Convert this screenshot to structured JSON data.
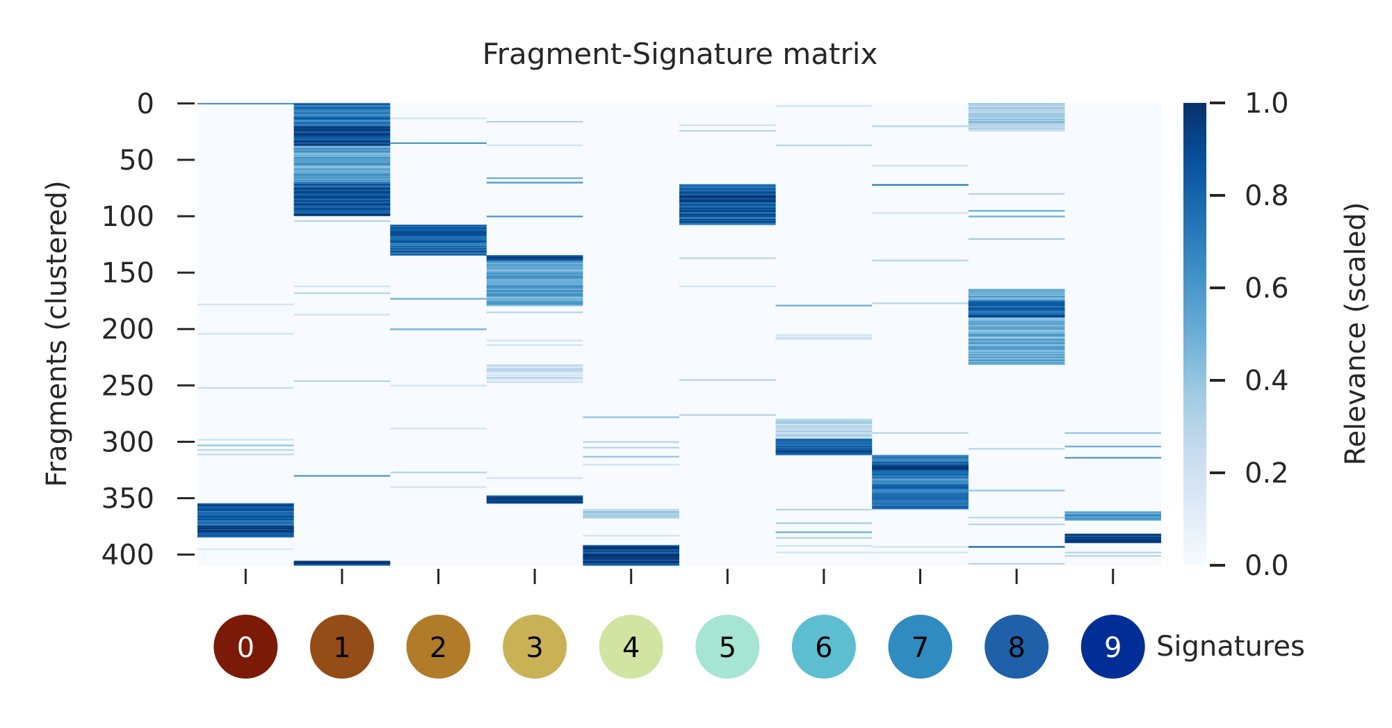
{
  "chart_data": {
    "type": "heatmap",
    "title": "Fragment-Signature matrix",
    "ylabel": "Fragments (clustered)",
    "colorbar_label": "Relevance (scaled)",
    "colormap": "Blues",
    "value_range": [
      0.0,
      1.0
    ],
    "n_rows": 410,
    "y_ticks": [
      0,
      50,
      100,
      150,
      200,
      250,
      300,
      350,
      400
    ],
    "colorbar_ticks": [
      "0.0",
      "0.2",
      "0.4",
      "0.6",
      "0.8",
      "1.0"
    ],
    "signatures": {
      "label": "Signatures",
      "ids": [
        "0",
        "1",
        "2",
        "3",
        "4",
        "5",
        "6",
        "7",
        "8",
        "9"
      ],
      "colors": [
        "#7b1a06",
        "#944d16",
        "#b07c2a",
        "#c9b256",
        "#d1e4a2",
        "#a6e4d4",
        "#5dbed1",
        "#2f8bc0",
        "#1f60a8",
        "#002e96"
      ],
      "text_colors": [
        "#ffffff",
        "#000000",
        "#000000",
        "#000000",
        "#000000",
        "#000000",
        "#000000",
        "#000000",
        "#000000",
        "#ffffff"
      ]
    },
    "columns": [
      {
        "signature": "0",
        "blocks": [
          {
            "rows": [
              0,
              1
            ],
            "value": 0.7
          },
          {
            "rows": [
              355,
              385
            ],
            "value": 0.8
          },
          {
            "rows": [
              375,
              380
            ],
            "value": 0.95
          }
        ],
        "lines": [
          [
            178,
            0.2
          ],
          [
            204,
            0.2
          ],
          [
            252,
            0.25
          ],
          [
            298,
            0.2
          ],
          [
            303,
            0.4
          ],
          [
            307,
            0.3
          ],
          [
            311,
            0.25
          ],
          [
            395,
            0.15
          ]
        ]
      },
      {
        "signature": "1",
        "blocks": [
          {
            "rows": [
              0,
              20
            ],
            "value": 0.75
          },
          {
            "rows": [
              20,
              38
            ],
            "value": 0.9
          },
          {
            "rows": [
              38,
              70
            ],
            "value": 0.55
          },
          {
            "rows": [
              70,
              100
            ],
            "value": 0.85
          },
          {
            "rows": [
              406,
              410
            ],
            "value": 0.9
          }
        ],
        "lines": [
          [
            104,
            0.3
          ],
          [
            162,
            0.2
          ],
          [
            168,
            0.3
          ],
          [
            187,
            0.2
          ],
          [
            246,
            0.3
          ],
          [
            330,
            0.6
          ]
        ]
      },
      {
        "signature": "2",
        "blocks": [
          {
            "rows": [
              108,
              135
            ],
            "value": 0.8
          }
        ],
        "lines": [
          [
            13,
            0.2
          ],
          [
            35,
            0.6
          ],
          [
            173,
            0.5
          ],
          [
            200,
            0.5
          ],
          [
            250,
            0.2
          ],
          [
            288,
            0.2
          ],
          [
            327,
            0.3
          ],
          [
            340,
            0.2
          ]
        ]
      },
      {
        "signature": "3",
        "blocks": [
          {
            "rows": [
              135,
              180
            ],
            "value": 0.55
          },
          {
            "rows": [
              135,
              140
            ],
            "value": 0.85
          },
          {
            "rows": [
              232,
              248
            ],
            "value": 0.2
          },
          {
            "rows": [
              348,
              355
            ],
            "value": 0.9
          }
        ],
        "lines": [
          [
            16,
            0.3
          ],
          [
            37,
            0.2
          ],
          [
            66,
            0.5
          ],
          [
            70,
            0.6
          ],
          [
            100,
            0.6
          ],
          [
            185,
            0.3
          ],
          [
            210,
            0.2
          ],
          [
            214,
            0.2
          ],
          [
            332,
            0.2
          ]
        ]
      },
      {
        "signature": "4",
        "blocks": [
          {
            "rows": [
              360,
              368
            ],
            "value": 0.35
          },
          {
            "rows": [
              392,
              410
            ],
            "value": 0.9
          }
        ],
        "lines": [
          [
            278,
            0.4
          ],
          [
            300,
            0.3
          ],
          [
            305,
            0.3
          ],
          [
            313,
            0.4
          ],
          [
            320,
            0.2
          ],
          [
            383,
            0.2
          ]
        ]
      },
      {
        "signature": "5",
        "blocks": [
          {
            "rows": [
              72,
              108
            ],
            "value": 0.8
          },
          {
            "rows": [
              82,
              88
            ],
            "value": 0.95
          }
        ],
        "lines": [
          [
            19,
            0.2
          ],
          [
            24,
            0.3
          ],
          [
            137,
            0.3
          ],
          [
            162,
            0.2
          ],
          [
            245,
            0.3
          ],
          [
            276,
            0.3
          ]
        ]
      },
      {
        "signature": "6",
        "blocks": [
          {
            "rows": [
              280,
              298
            ],
            "value": 0.25
          },
          {
            "rows": [
              298,
              312
            ],
            "value": 0.8
          },
          {
            "rows": [
              205,
              210
            ],
            "value": 0.2
          }
        ],
        "lines": [
          [
            2,
            0.2
          ],
          [
            37,
            0.3
          ],
          [
            179,
            0.5
          ],
          [
            360,
            0.3
          ],
          [
            372,
            0.35
          ],
          [
            380,
            0.5
          ],
          [
            385,
            0.3
          ],
          [
            392,
            0.2
          ],
          [
            398,
            0.2
          ]
        ]
      },
      {
        "signature": "7",
        "blocks": [
          {
            "rows": [
              312,
              360
            ],
            "value": 0.7
          },
          {
            "rows": [
              318,
              328
            ],
            "value": 0.85
          },
          {
            "rows": [
              342,
              356
            ],
            "value": 0.75
          }
        ],
        "lines": [
          [
            20,
            0.3
          ],
          [
            55,
            0.2
          ],
          [
            72,
            0.7
          ],
          [
            97,
            0.2
          ],
          [
            139,
            0.3
          ],
          [
            177,
            0.3
          ],
          [
            292,
            0.3
          ],
          [
            393,
            0.2
          ],
          [
            398,
            0.2
          ]
        ]
      },
      {
        "signature": "8",
        "blocks": [
          {
            "rows": [
              0,
              25
            ],
            "value": 0.35
          },
          {
            "rows": [
              165,
              232
            ],
            "value": 0.5
          },
          {
            "rows": [
              175,
              190
            ],
            "value": 0.8
          }
        ],
        "lines": [
          [
            80,
            0.3
          ],
          [
            95,
            0.5
          ],
          [
            100,
            0.5
          ],
          [
            120,
            0.35
          ],
          [
            306,
            0.3
          ],
          [
            343,
            0.4
          ],
          [
            367,
            0.3
          ],
          [
            373,
            0.3
          ],
          [
            393,
            0.8
          ],
          [
            408,
            0.3
          ]
        ]
      },
      {
        "signature": "9",
        "blocks": [
          {
            "rows": [
              362,
              370
            ],
            "value": 0.6
          },
          {
            "rows": [
              382,
              390
            ],
            "value": 0.9
          }
        ],
        "lines": [
          [
            292,
            0.4
          ],
          [
            304,
            0.5
          ],
          [
            314,
            0.6
          ],
          [
            398,
            0.3
          ],
          [
            401,
            0.3
          ]
        ]
      }
    ]
  }
}
